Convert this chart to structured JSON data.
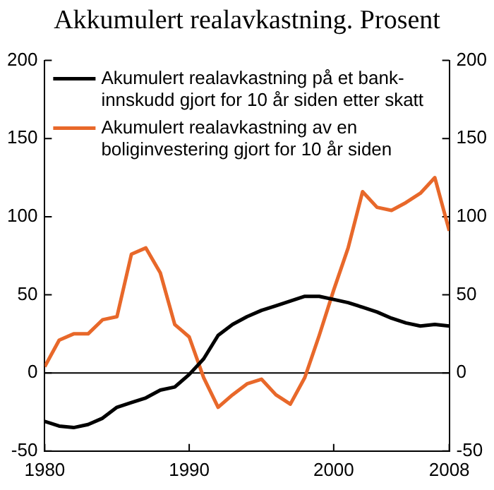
{
  "chart_data": {
    "type": "line",
    "title": "Akkumulert realavkastning. Prosent",
    "x": [
      1980,
      1981,
      1982,
      1983,
      1984,
      1985,
      1986,
      1987,
      1988,
      1989,
      1990,
      1991,
      1992,
      1993,
      1994,
      1995,
      1996,
      1997,
      1998,
      1999,
      2000,
      2001,
      2002,
      2003,
      2004,
      2005,
      2006,
      2007,
      2008
    ],
    "series": [
      {
        "name": "Akumulert realavkastning på et bank-innskudd gjort for 10 år siden etter skatt",
        "color": "#000000",
        "values": [
          -31,
          -34,
          -35,
          -33,
          -29,
          -22,
          -19,
          -16,
          -11,
          -9,
          -1,
          9,
          24,
          31,
          36,
          40,
          43,
          46,
          49,
          49,
          47,
          45,
          42,
          39,
          35,
          32,
          30,
          31,
          30
        ]
      },
      {
        "name": "Akumulert realavkastning av en boliginvestering gjort for 10 år siden",
        "color": "#e8682a",
        "values": [
          4,
          21,
          25,
          25,
          34,
          36,
          76,
          80,
          64,
          31,
          23,
          -3,
          -22,
          -14,
          -7,
          -4,
          -14,
          -20,
          -3,
          24,
          53,
          80,
          116,
          106,
          104,
          109,
          115,
          125,
          91
        ]
      }
    ],
    "xlim": [
      1980,
      2008
    ],
    "xticks": [
      1980,
      1990,
      2000,
      2008
    ],
    "ylim": [
      -50,
      200
    ],
    "yticks": [
      -50,
      0,
      50,
      100,
      150,
      200
    ],
    "y2lim": [
      -50,
      200
    ],
    "y2ticks": [
      -50,
      0,
      50,
      100,
      150,
      200
    ],
    "ref_lines": [
      {
        "axis": "y",
        "value": 0,
        "color": "#000000"
      }
    ],
    "grid": false,
    "legend": "top left",
    "marker": "none",
    "line_style": "solid"
  }
}
